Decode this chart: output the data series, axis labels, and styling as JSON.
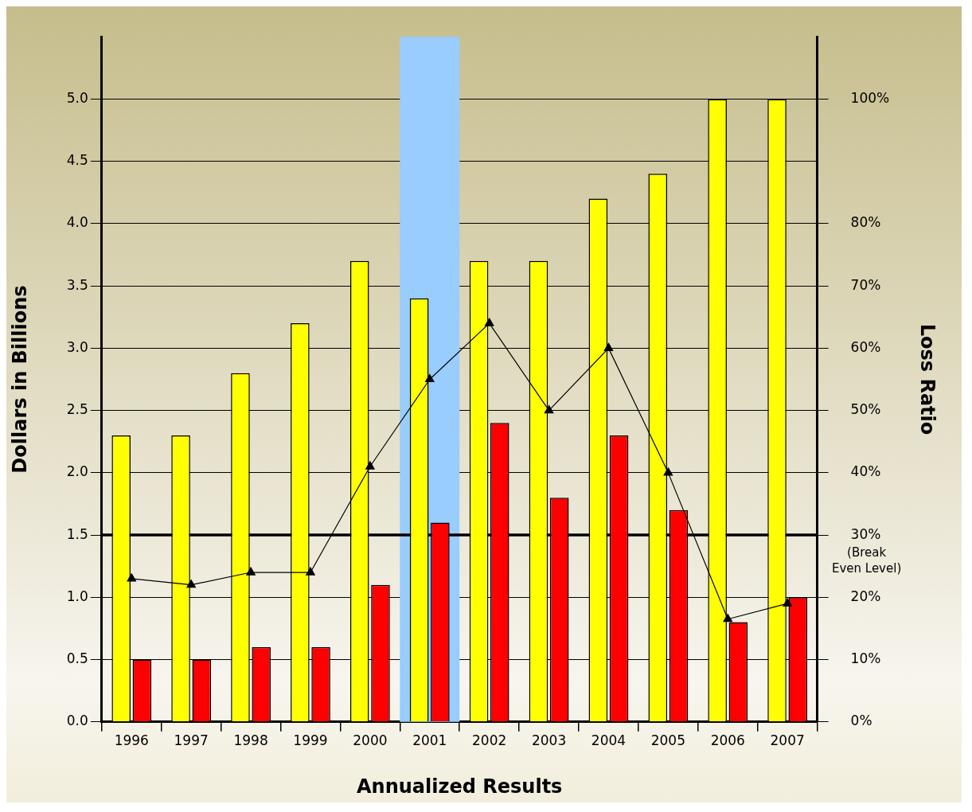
{
  "chart_data": {
    "type": "bar",
    "xlabel": "Annualized Results",
    "ylabel": "Dollars in Billions",
    "y2label": "Loss Ratio",
    "categories": [
      "1996",
      "1997",
      "1998",
      "1999",
      "2000",
      "2001",
      "2002",
      "2003",
      "2004",
      "2005",
      "2006",
      "2007"
    ],
    "series": [
      {
        "color": "#ffff00",
        "values": [
          2.3,
          2.3,
          2.8,
          3.2,
          3.7,
          3.4,
          3.7,
          3.7,
          4.2,
          4.4,
          5.0,
          5.0
        ]
      },
      {
        "color": "#ff0000",
        "values": [
          0.5,
          0.5,
          0.6,
          0.6,
          1.1,
          1.6,
          2.4,
          1.8,
          2.3,
          1.7,
          0.8,
          1.0
        ]
      },
      {
        "type": "line",
        "axis": "y2",
        "color": "#000000",
        "marker": "triangle",
        "values": [
          23,
          22,
          24,
          24,
          41,
          55,
          64,
          50,
          60,
          40,
          16.5,
          19
        ]
      }
    ],
    "ylim": [
      0,
      5.5
    ],
    "yticks": [
      {
        "value": 0,
        "label": "0.0"
      },
      {
        "value": 0.5,
        "label": "0.5"
      },
      {
        "value": 1,
        "label": "1.0"
      },
      {
        "value": 1.5,
        "label": "1.5"
      },
      {
        "value": 2,
        "label": "2.0"
      },
      {
        "value": 2.5,
        "label": "2.5"
      },
      {
        "value": 3,
        "label": "3.0"
      },
      {
        "value": 3.5,
        "label": "3.5"
      },
      {
        "value": 4,
        "label": "4.0"
      },
      {
        "value": 4.5,
        "label": "4.5"
      },
      {
        "value": 5,
        "label": "5.0"
      }
    ],
    "y2lim": [
      0,
      110
    ],
    "y2ticks": [
      {
        "value": 0,
        "label": "0%"
      },
      {
        "value": 10,
        "label": "10%"
      },
      {
        "value": 20,
        "label": "20%"
      },
      {
        "value": 30,
        "label": "30%"
      },
      {
        "value": 40,
        "label": "40%"
      },
      {
        "value": 50,
        "label": "50%"
      },
      {
        "value": 60,
        "label": "60%"
      },
      {
        "value": 70,
        "label": "70%"
      },
      {
        "value": 80,
        "label": "80%"
      },
      {
        "value": 100,
        "label": "100%"
      }
    ],
    "ref_lines": [
      {
        "axis": "y",
        "value": 1.5,
        "label": "(Break Even Level)",
        "color": "#000000"
      }
    ],
    "bands": [
      {
        "axis": "x",
        "from": "2001",
        "to": "2001",
        "color": "#99ccff"
      }
    ],
    "grid": "y",
    "legend": false
  }
}
